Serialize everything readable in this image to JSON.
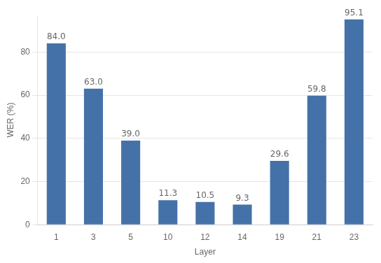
{
  "chart_data": {
    "type": "bar",
    "xlabel": "Layer",
    "ylabel": "WER (%)",
    "categories": [
      "1",
      "3",
      "5",
      "10",
      "12",
      "14",
      "19",
      "21",
      "23"
    ],
    "values": [
      84.0,
      63.0,
      39.0,
      11.3,
      10.5,
      9.3,
      29.6,
      59.8,
      95.1
    ],
    "value_labels": [
      "84.0",
      "63.0",
      "39.0",
      "11.3",
      "10.5",
      "9.3",
      "29.6",
      "59.8",
      "95.1"
    ],
    "data_labels": true,
    "color": "#4472a8",
    "ylim": [
      0,
      97
    ],
    "yticks": [
      0,
      20,
      40,
      60,
      80
    ],
    "grid": true
  }
}
